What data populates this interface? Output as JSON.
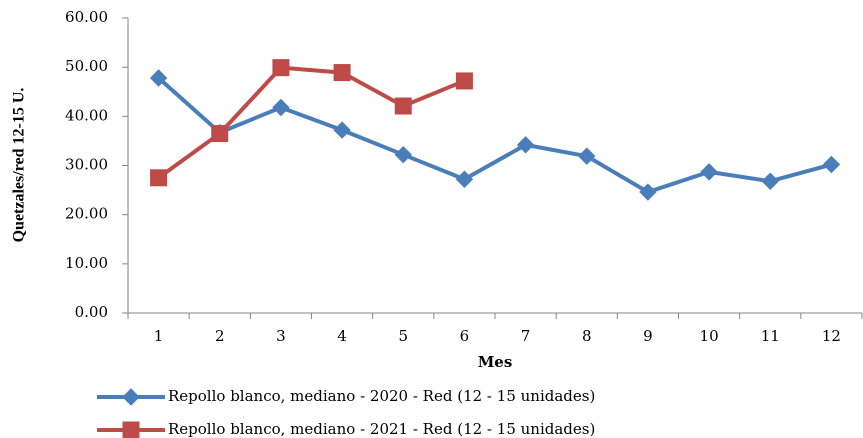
{
  "chart_data": {
    "type": "line",
    "y_label": "Quetzales/red 12-15 U.",
    "x_label": "Mes",
    "categories": [
      "1",
      "2",
      "3",
      "4",
      "5",
      "6",
      "7",
      "8",
      "9",
      "10",
      "11",
      "12"
    ],
    "series": [
      {
        "name": "Repollo blanco, mediano - 2020 - Red (12 - 15 unidades)",
        "color": "#4a7ebb",
        "marker": "diamond",
        "values": [
          47.8,
          36.7,
          41.8,
          37.2,
          32.2,
          27.2,
          34.2,
          31.9,
          24.6,
          28.7,
          26.8,
          30.2
        ]
      },
      {
        "name": "Repollo blanco, mediano - 2021 - Red (12 - 15 unidades)",
        "color": "#be4b48",
        "marker": "square",
        "values": [
          27.5,
          36.5,
          49.9,
          48.9,
          42.1,
          47.2,
          null,
          null,
          null,
          null,
          null,
          null
        ]
      }
    ],
    "ylim": [
      0,
      60
    ],
    "yticks": [
      {
        "value": 0,
        "label": "0.00"
      },
      {
        "value": 10,
        "label": "10.00"
      },
      {
        "value": 20,
        "label": "20.00"
      },
      {
        "value": 30,
        "label": "30.00"
      },
      {
        "value": 40,
        "label": "40.00"
      },
      {
        "value": 50,
        "label": "50.00"
      },
      {
        "value": 60,
        "label": "60.00"
      }
    ],
    "legend": "bottom"
  }
}
